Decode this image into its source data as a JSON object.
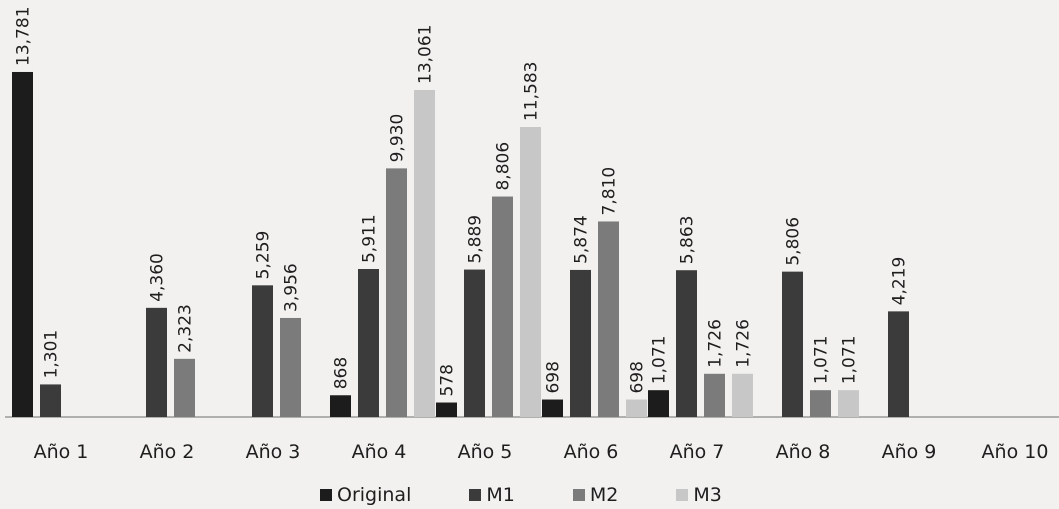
{
  "chart_data": {
    "type": "bar",
    "categories": [
      "Año 1",
      "Año 2",
      "Año 3",
      "Año 4",
      "Año 5",
      "Año 6",
      "Año 7",
      "Año 8",
      "Año 9",
      "Año 10"
    ],
    "series": [
      {
        "name": "Original",
        "values": [
          13781,
          null,
          null,
          868,
          578,
          698,
          1071,
          null,
          null,
          null
        ],
        "labels": [
          "13,781",
          "",
          "",
          "868",
          "578",
          "698",
          "1,071",
          "",
          "",
          ""
        ]
      },
      {
        "name": "M1",
        "values": [
          1301,
          4360,
          5259,
          5911,
          5889,
          5874,
          5863,
          5806,
          4219,
          null
        ],
        "labels": [
          "1,301",
          "4,360",
          "5,259",
          "5,911",
          "5,889",
          "5,874",
          "5,863",
          "5,806",
          "4,219",
          ""
        ]
      },
      {
        "name": "M2",
        "values": [
          null,
          2323,
          3956,
          9930,
          8806,
          7810,
          1726,
          1071,
          null,
          null
        ],
        "labels": [
          "",
          "2,323",
          "3,956",
          "9,930",
          "8,806",
          "7,810",
          "1,726",
          "1,071",
          "",
          ""
        ]
      },
      {
        "name": "M3",
        "values": [
          null,
          null,
          null,
          13061,
          11583,
          698,
          1726,
          1071,
          null,
          null
        ],
        "labels": [
          "",
          "",
          "",
          "13,061",
          "11,583",
          "698",
          "1,726",
          "1,071",
          "",
          ""
        ]
      }
    ],
    "legend_position": "bottom",
    "grid": false
  },
  "colors": {
    "Original": "#1c1c1c",
    "M1": "#3b3b3b",
    "M2": "#7b7b7b",
    "M3": "#c7c7c7",
    "axis": "#9a9a9a",
    "text": "#1e1e1e"
  }
}
